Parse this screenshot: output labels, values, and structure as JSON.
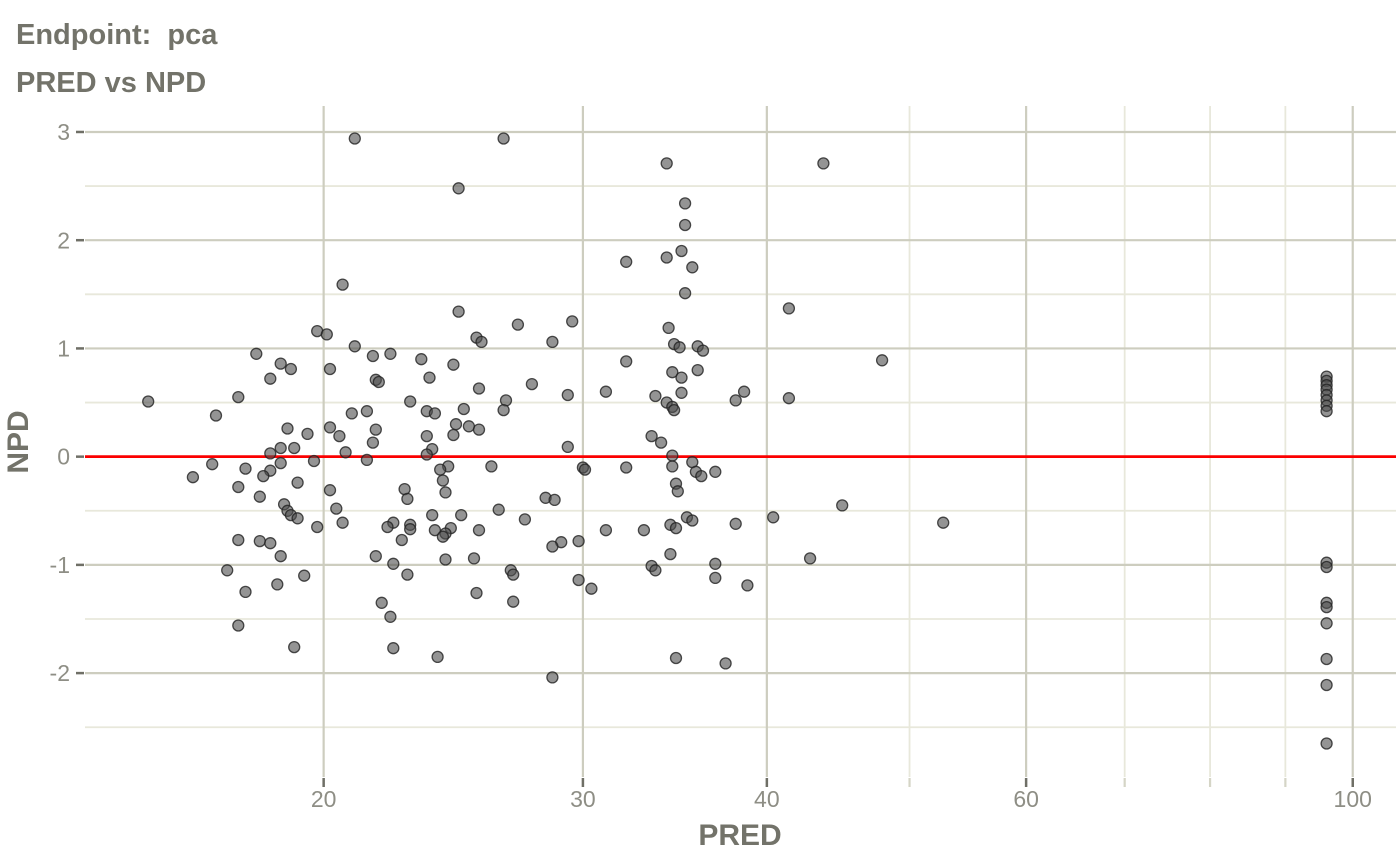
{
  "title": {
    "line1": "Endpoint:  pca",
    "line2": "PRED vs NPD"
  },
  "axes": {
    "x_label": "PRED",
    "y_label": "NPD"
  },
  "colors": {
    "title_text": "#73736a",
    "tick_text": "#8e8e85",
    "grid_major": "#cdcdbf",
    "grid_minor": "#e8e8db",
    "tick_mark_major": "#6f6f66",
    "tick_mark_minor": "#d5d5c6",
    "ref_line": "#fb0000",
    "point_fill": "#4d4d4d",
    "point_stroke": "#222222",
    "background": "#ffffff"
  },
  "chart_data": {
    "type": "scatter",
    "title": "Endpoint:  pca — PRED vs NPD",
    "xlabel": "PRED",
    "ylabel": "NPD",
    "x_scale": "log10",
    "grid": true,
    "x_breaks": [
      20,
      30,
      40,
      60,
      100
    ],
    "x_minor_breaks": [
      50,
      70,
      80,
      90
    ],
    "y_breaks": [
      3,
      2,
      1,
      0,
      -1,
      -2
    ],
    "y_minor_breaks": [
      2.5,
      1.5,
      0.5,
      -0.5,
      -1.5,
      -2.5
    ],
    "x_range": [
      13.77,
      107.0
    ],
    "y_range": [
      -2.96,
      3.24
    ],
    "ref_line_y": 0,
    "points": [
      [
        21.0,
        2.94
      ],
      [
        26.5,
        2.94
      ],
      [
        34.2,
        2.71
      ],
      [
        43.7,
        2.71
      ],
      [
        24.7,
        2.48
      ],
      [
        35.2,
        2.34
      ],
      [
        35.2,
        2.14
      ],
      [
        35.0,
        1.9
      ],
      [
        34.2,
        1.84
      ],
      [
        32.1,
        1.8
      ],
      [
        35.6,
        1.75
      ],
      [
        20.6,
        1.59
      ],
      [
        35.2,
        1.51
      ],
      [
        41.4,
        1.37
      ],
      [
        24.7,
        1.34
      ],
      [
        29.5,
        1.25
      ],
      [
        27.1,
        1.22
      ],
      [
        34.3,
        1.19
      ],
      [
        19.8,
        1.16
      ],
      [
        20.1,
        1.13
      ],
      [
        25.4,
        1.1
      ],
      [
        25.6,
        1.06
      ],
      [
        28.6,
        1.06
      ],
      [
        34.6,
        1.04
      ],
      [
        34.9,
        1.01
      ],
      [
        35.9,
        1.02
      ],
      [
        36.2,
        0.98
      ],
      [
        21.0,
        1.02
      ],
      [
        21.6,
        0.93
      ],
      [
        22.2,
        0.95
      ],
      [
        18.0,
        0.95
      ],
      [
        23.3,
        0.9
      ],
      [
        32.1,
        0.88
      ],
      [
        47.9,
        0.89
      ],
      [
        18.7,
        0.86
      ],
      [
        24.5,
        0.85
      ],
      [
        19.0,
        0.81
      ],
      [
        20.2,
        0.81
      ],
      [
        35.9,
        0.8
      ],
      [
        34.5,
        0.78
      ],
      [
        23.6,
        0.73
      ],
      [
        35.0,
        0.73
      ],
      [
        21.7,
        0.71
      ],
      [
        21.8,
        0.69
      ],
      [
        18.4,
        0.72
      ],
      [
        27.7,
        0.67
      ],
      [
        25.5,
        0.63
      ],
      [
        31.1,
        0.6
      ],
      [
        38.6,
        0.6
      ],
      [
        35.0,
        0.59
      ],
      [
        29.3,
        0.57
      ],
      [
        33.6,
        0.56
      ],
      [
        17.5,
        0.55
      ],
      [
        15.2,
        0.51
      ],
      [
        22.9,
        0.51
      ],
      [
        26.6,
        0.52
      ],
      [
        38.1,
        0.52
      ],
      [
        41.4,
        0.54
      ],
      [
        34.2,
        0.5
      ],
      [
        34.5,
        0.46
      ],
      [
        24.9,
        0.44
      ],
      [
        26.5,
        0.43
      ],
      [
        34.6,
        0.43
      ],
      [
        21.4,
        0.42
      ],
      [
        23.5,
        0.42
      ],
      [
        20.9,
        0.4
      ],
      [
        23.8,
        0.4
      ],
      [
        16.9,
        0.38
      ],
      [
        24.6,
        0.3
      ],
      [
        25.1,
        0.28
      ],
      [
        20.2,
        0.27
      ],
      [
        18.9,
        0.26
      ],
      [
        21.7,
        0.25
      ],
      [
        25.5,
        0.25
      ],
      [
        19.5,
        0.21
      ],
      [
        24.5,
        0.2
      ],
      [
        20.5,
        0.19
      ],
      [
        23.5,
        0.19
      ],
      [
        33.4,
        0.19
      ],
      [
        21.6,
        0.13
      ],
      [
        33.9,
        0.13
      ],
      [
        29.3,
        0.09
      ],
      [
        18.7,
        0.08
      ],
      [
        19.1,
        0.08
      ],
      [
        23.7,
        0.07
      ],
      [
        20.7,
        0.04
      ],
      [
        18.4,
        0.03
      ],
      [
        23.5,
        0.02
      ],
      [
        34.5,
        0.01
      ],
      [
        21.4,
        -0.03
      ],
      [
        19.7,
        -0.04
      ],
      [
        35.6,
        -0.05
      ],
      [
        18.7,
        -0.06
      ],
      [
        16.8,
        -0.07
      ],
      [
        24.3,
        -0.09
      ],
      [
        26.0,
        -0.09
      ],
      [
        34.5,
        -0.09
      ],
      [
        30.0,
        -0.1
      ],
      [
        32.1,
        -0.1
      ],
      [
        17.7,
        -0.11
      ],
      [
        24.0,
        -0.12
      ],
      [
        30.1,
        -0.12
      ],
      [
        18.4,
        -0.13
      ],
      [
        35.8,
        -0.14
      ],
      [
        36.9,
        -0.14
      ],
      [
        16.3,
        -0.19
      ],
      [
        18.2,
        -0.18
      ],
      [
        36.1,
        -0.18
      ],
      [
        24.1,
        -0.22
      ],
      [
        19.2,
        -0.24
      ],
      [
        34.7,
        -0.25
      ],
      [
        17.5,
        -0.28
      ],
      [
        20.2,
        -0.31
      ],
      [
        22.7,
        -0.3
      ],
      [
        34.8,
        -0.32
      ],
      [
        24.2,
        -0.33
      ],
      [
        18.1,
        -0.37
      ],
      [
        28.3,
        -0.38
      ],
      [
        22.8,
        -0.39
      ],
      [
        28.7,
        -0.4
      ],
      [
        18.8,
        -0.44
      ],
      [
        45.0,
        -0.45
      ],
      [
        20.4,
        -0.48
      ],
      [
        26.3,
        -0.49
      ],
      [
        18.9,
        -0.5
      ],
      [
        19.0,
        -0.54
      ],
      [
        23.7,
        -0.54
      ],
      [
        24.8,
        -0.54
      ],
      [
        35.3,
        -0.56
      ],
      [
        40.4,
        -0.56
      ],
      [
        19.2,
        -0.57
      ],
      [
        27.4,
        -0.58
      ],
      [
        35.6,
        -0.59
      ],
      [
        20.6,
        -0.61
      ],
      [
        22.3,
        -0.61
      ],
      [
        52.7,
        -0.61
      ],
      [
        38.1,
        -0.62
      ],
      [
        22.9,
        -0.63
      ],
      [
        34.4,
        -0.63
      ],
      [
        19.8,
        -0.65
      ],
      [
        22.1,
        -0.65
      ],
      [
        24.4,
        -0.66
      ],
      [
        34.7,
        -0.66
      ],
      [
        22.9,
        -0.67
      ],
      [
        23.8,
        -0.68
      ],
      [
        25.5,
        -0.68
      ],
      [
        31.1,
        -0.68
      ],
      [
        33.0,
        -0.68
      ],
      [
        24.2,
        -0.71
      ],
      [
        24.1,
        -0.74
      ],
      [
        22.6,
        -0.77
      ],
      [
        17.5,
        -0.77
      ],
      [
        18.1,
        -0.78
      ],
      [
        29.8,
        -0.78
      ],
      [
        29.0,
        -0.79
      ],
      [
        18.4,
        -0.8
      ],
      [
        28.6,
        -0.83
      ],
      [
        34.4,
        -0.9
      ],
      [
        18.7,
        -0.92
      ],
      [
        21.7,
        -0.92
      ],
      [
        42.8,
        -0.94
      ],
      [
        25.3,
        -0.94
      ],
      [
        24.2,
        -0.95
      ],
      [
        22.3,
        -0.99
      ],
      [
        36.9,
        -0.99
      ],
      [
        33.4,
        -1.01
      ],
      [
        33.6,
        -1.05
      ],
      [
        17.2,
        -1.05
      ],
      [
        26.8,
        -1.05
      ],
      [
        26.9,
        -1.09
      ],
      [
        22.8,
        -1.09
      ],
      [
        19.4,
        -1.1
      ],
      [
        36.9,
        -1.12
      ],
      [
        29.8,
        -1.14
      ],
      [
        18.6,
        -1.18
      ],
      [
        38.8,
        -1.19
      ],
      [
        30.4,
        -1.22
      ],
      [
        17.7,
        -1.25
      ],
      [
        25.4,
        -1.26
      ],
      [
        26.9,
        -1.34
      ],
      [
        21.9,
        -1.35
      ],
      [
        22.2,
        -1.48
      ],
      [
        17.5,
        -1.56
      ],
      [
        19.1,
        -1.76
      ],
      [
        22.3,
        -1.77
      ],
      [
        23.9,
        -1.85
      ],
      [
        34.7,
        -1.86
      ],
      [
        37.5,
        -1.91
      ],
      [
        28.6,
        -2.04
      ],
      [
        96,
        0.74
      ],
      [
        96,
        0.7
      ],
      [
        96,
        0.66
      ],
      [
        96,
        0.62
      ],
      [
        96,
        0.57
      ],
      [
        96,
        0.52
      ],
      [
        96,
        0.47
      ],
      [
        96,
        0.42
      ],
      [
        96,
        -0.98
      ],
      [
        96,
        -1.02
      ],
      [
        96,
        -1.35
      ],
      [
        96,
        -1.39
      ],
      [
        96,
        -1.54
      ],
      [
        96,
        -1.87
      ],
      [
        96,
        -2.11
      ],
      [
        96,
        -2.65
      ]
    ]
  }
}
